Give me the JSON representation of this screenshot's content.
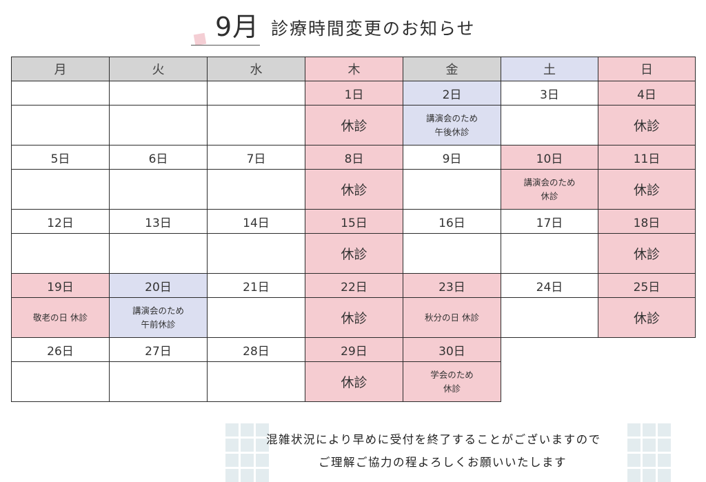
{
  "title": {
    "month": "9月",
    "text": "診療時間変更のお知らせ"
  },
  "colors": {
    "pink": "#f5ccd1",
    "lavender": "#dcdff1",
    "gray": "#d4d4d4"
  },
  "weekdays": [
    {
      "label": "月",
      "color": "gray"
    },
    {
      "label": "火",
      "color": "gray"
    },
    {
      "label": "水",
      "color": "gray"
    },
    {
      "label": "木",
      "color": "pink"
    },
    {
      "label": "金",
      "color": "gray"
    },
    {
      "label": "土",
      "color": "lavender"
    },
    {
      "label": "日",
      "color": "pink"
    }
  ],
  "weeks": [
    [
      {
        "date": "",
        "note": ""
      },
      {
        "date": "",
        "note": ""
      },
      {
        "date": "",
        "note": ""
      },
      {
        "date": "1日",
        "note": "休診",
        "color": "pink"
      },
      {
        "date": "2日",
        "note": "講演会のため\n午後休診",
        "color": "lavender",
        "small": true
      },
      {
        "date": "3日",
        "note": ""
      },
      {
        "date": "4日",
        "note": "休診",
        "color": "pink"
      }
    ],
    [
      {
        "date": "5日",
        "note": ""
      },
      {
        "date": "6日",
        "note": ""
      },
      {
        "date": "7日",
        "note": ""
      },
      {
        "date": "8日",
        "note": "休診",
        "color": "pink"
      },
      {
        "date": "9日",
        "note": ""
      },
      {
        "date": "10日",
        "note": "講演会のため\n休診",
        "color": "pink",
        "small": true
      },
      {
        "date": "11日",
        "note": "休診",
        "color": "pink"
      }
    ],
    [
      {
        "date": "12日",
        "note": ""
      },
      {
        "date": "13日",
        "note": ""
      },
      {
        "date": "14日",
        "note": ""
      },
      {
        "date": "15日",
        "note": "休診",
        "color": "pink"
      },
      {
        "date": "16日",
        "note": ""
      },
      {
        "date": "17日",
        "note": ""
      },
      {
        "date": "18日",
        "note": "休診",
        "color": "pink"
      }
    ],
    [
      {
        "date": "19日",
        "note": "敬老の日 休診",
        "color": "pink",
        "small": true
      },
      {
        "date": "20日",
        "note": "講演会のため\n午前休診",
        "color": "lavender",
        "small": true
      },
      {
        "date": "21日",
        "note": ""
      },
      {
        "date": "22日",
        "note": "休診",
        "color": "pink"
      },
      {
        "date": "23日",
        "note": "秋分の日 休診",
        "color": "pink",
        "small": true
      },
      {
        "date": "24日",
        "note": ""
      },
      {
        "date": "25日",
        "note": "休診",
        "color": "pink"
      }
    ],
    [
      {
        "date": "26日",
        "note": ""
      },
      {
        "date": "27日",
        "note": ""
      },
      {
        "date": "28日",
        "note": ""
      },
      {
        "date": "29日",
        "note": "休診",
        "color": "pink"
      },
      {
        "date": "30日",
        "note": "学会のため\n休診",
        "color": "pink",
        "small": true
      },
      null,
      null
    ]
  ],
  "footer": {
    "line1": "混雑状況により早めに受付を終了することがございますので",
    "line2": "ご理解ご協力の程よろしくお願いいたします"
  }
}
